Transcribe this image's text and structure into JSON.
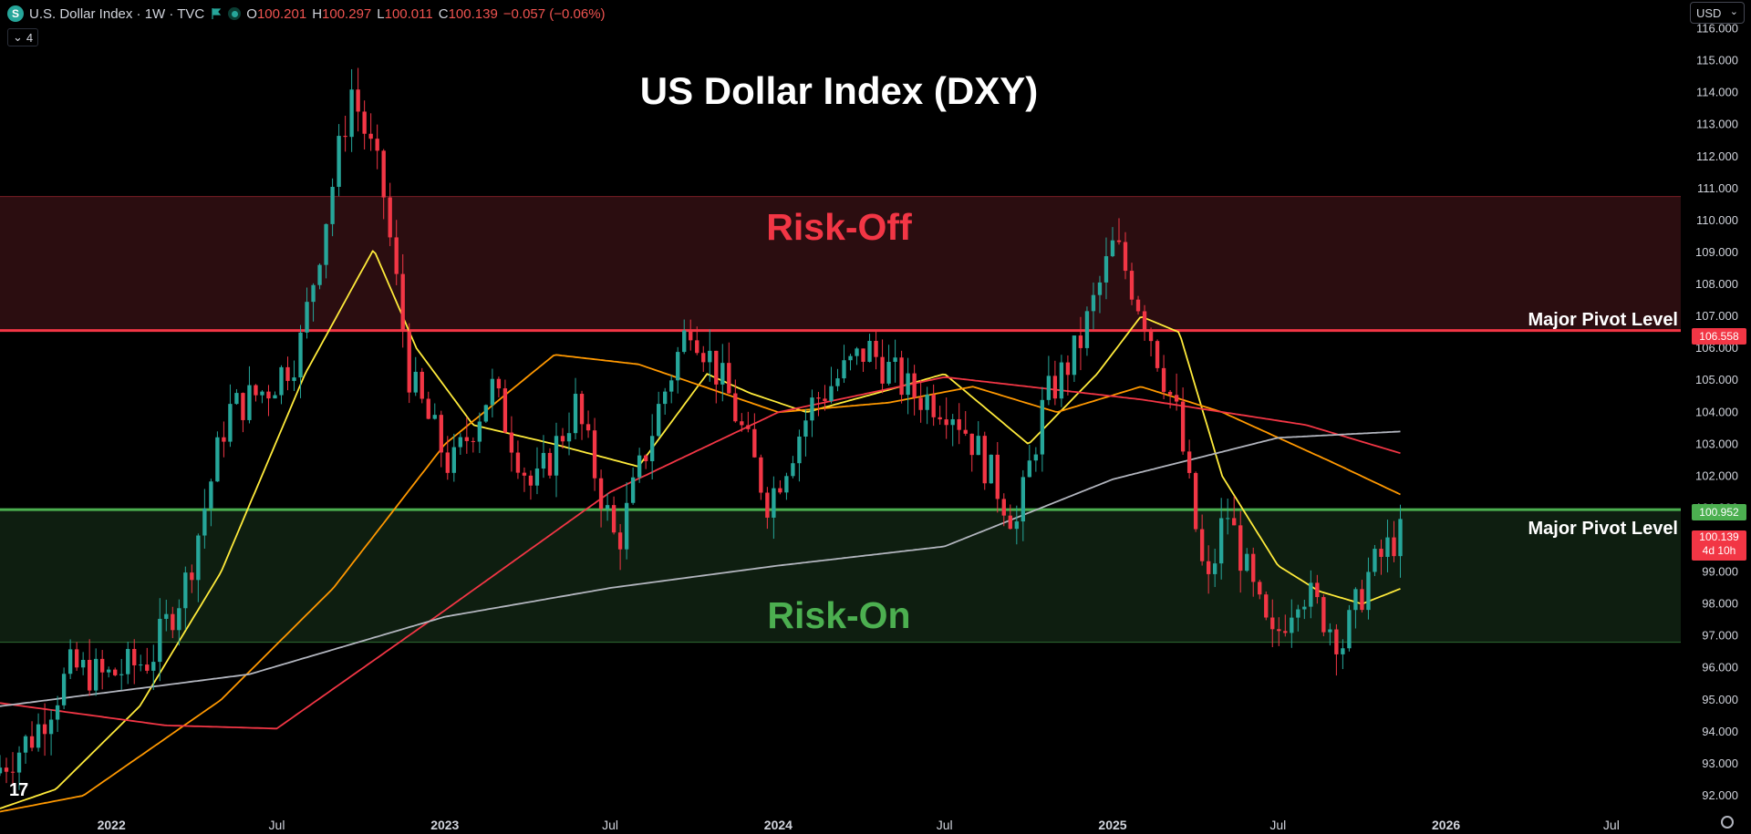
{
  "header": {
    "symbol_icon": "S",
    "instrument": "U.S. Dollar Index · 1W · TVC",
    "open_label": "O",
    "open": "100.201",
    "high_label": "H",
    "high": "100.297",
    "low_label": "L",
    "low": "100.011",
    "close_label": "C",
    "close": "100.139",
    "change": "−0.057 (−0.06%)",
    "indicator_count": "4"
  },
  "currency": "USD",
  "title": "US Dollar Index (DXY)",
  "zones": {
    "risk_off": "Risk-Off",
    "risk_on": "Risk-On",
    "pivot_label": "Major Pivot Level"
  },
  "price_tags": {
    "upper_pivot": "106.558",
    "lower_pivot": "100.952",
    "last_price": "100.139",
    "countdown": "4d 10h"
  },
  "colors": {
    "background": "#000000",
    "bull": "#26a69a",
    "bear": "#f23645",
    "risk_off": "#f23645",
    "risk_on": "#4caf50",
    "ma_fast": "#ffeb3b",
    "ma_mid": "#ff9800",
    "ma_slow": "#f23645",
    "ma_long": "#b2b5be"
  },
  "chart_data": {
    "type": "candlestick",
    "title": "US Dollar Index (DXY)",
    "timeframe": "1W",
    "y_axis": {
      "range": [
        91.4,
        116.9
      ],
      "ticks": [
        "92.000",
        "93.000",
        "94.000",
        "95.000",
        "96.000",
        "97.000",
        "98.000",
        "99.000",
        "100.000",
        "101.000",
        "102.000",
        "103.000",
        "104.000",
        "105.000",
        "106.000",
        "107.000",
        "108.000",
        "109.000",
        "110.000",
        "111.000",
        "112.000",
        "113.000",
        "114.000",
        "115.000",
        "116.000"
      ]
    },
    "x_axis": {
      "range": [
        "2021-09-01",
        "2026-09-15"
      ],
      "ticks": [
        {
          "date": "2022-01-01",
          "label": "2022"
        },
        {
          "date": "2022-07-01",
          "label": "Jul"
        },
        {
          "date": "2023-01-01",
          "label": "2023"
        },
        {
          "date": "2023-07-01",
          "label": "Jul"
        },
        {
          "date": "2024-01-01",
          "label": "2024"
        },
        {
          "date": "2024-07-01",
          "label": "Jul"
        },
        {
          "date": "2025-01-01",
          "label": "2025"
        },
        {
          "date": "2025-07-01",
          "label": "Jul"
        },
        {
          "date": "2026-01-01",
          "label": "2026"
        },
        {
          "date": "2026-07-01",
          "label": "Jul"
        }
      ]
    },
    "zones": [
      {
        "name": "Risk-Off",
        "from": 106.558,
        "to": 110.75
      },
      {
        "name": "Risk-On",
        "from": 96.8,
        "to": 100.952
      }
    ],
    "pivot_levels": [
      106.558,
      100.952
    ],
    "last_price": 100.139,
    "price_path": [
      [
        "2021-09-01",
        92.7
      ],
      [
        "2021-10-15",
        93.9
      ],
      [
        "2021-11-25",
        96.0
      ],
      [
        "2022-01-01",
        95.7
      ],
      [
        "2022-02-20",
        96.3
      ],
      [
        "2022-04-01",
        98.8
      ],
      [
        "2022-05-15",
        104.0
      ],
      [
        "2022-06-30",
        104.8
      ],
      [
        "2022-08-01",
        105.9
      ],
      [
        "2022-09-28",
        114.1
      ],
      [
        "2022-11-01",
        111.0
      ],
      [
        "2022-12-01",
        105.0
      ],
      [
        "2023-01-15",
        102.2
      ],
      [
        "2023-02-28",
        104.8
      ],
      [
        "2023-04-15",
        101.5
      ],
      [
        "2023-05-31",
        104.2
      ],
      [
        "2023-07-15",
        99.8
      ],
      [
        "2023-09-01",
        104.3
      ],
      [
        "2023-10-04",
        106.9
      ],
      [
        "2023-11-15",
        104.5
      ],
      [
        "2023-12-28",
        101.2
      ],
      [
        "2024-02-15",
        104.3
      ],
      [
        "2024-04-15",
        106.0
      ],
      [
        "2024-06-01",
        104.6
      ],
      [
        "2024-07-15",
        104.2
      ],
      [
        "2024-08-10",
        103.0
      ],
      [
        "2024-09-25",
        100.5
      ],
      [
        "2024-10-25",
        104.3
      ],
      [
        "2024-12-01",
        106.0
      ],
      [
        "2025-01-10",
        109.3
      ],
      [
        "2025-02-15",
        106.8
      ],
      [
        "2025-03-20",
        103.8
      ],
      [
        "2025-04-21",
        98.3
      ],
      [
        "2025-05-12",
        101.0
      ],
      [
        "2025-06-10",
        98.4
      ],
      [
        "2025-07-01",
        96.7
      ],
      [
        "2025-08-01",
        98.6
      ],
      [
        "2025-09-17",
        96.8
      ],
      [
        "2025-10-15",
        98.9
      ],
      [
        "2025-11-14",
        100.1
      ]
    ],
    "series": [
      {
        "color_key": "ma_fast",
        "points": [
          [
            "2021-09-01",
            91.6
          ],
          [
            "2021-11-01",
            92.2
          ],
          [
            "2022-02-01",
            94.8
          ],
          [
            "2022-05-01",
            99.0
          ],
          [
            "2022-08-01",
            105.2
          ],
          [
            "2022-10-15",
            109.1
          ],
          [
            "2022-12-01",
            106.0
          ],
          [
            "2023-02-01",
            103.6
          ],
          [
            "2023-05-01",
            103.0
          ],
          [
            "2023-08-01",
            102.3
          ],
          [
            "2023-10-15",
            105.2
          ],
          [
            "2023-12-01",
            104.6
          ],
          [
            "2024-02-01",
            104.0
          ],
          [
            "2024-05-01",
            104.7
          ],
          [
            "2024-07-01",
            105.2
          ],
          [
            "2024-10-01",
            103.0
          ],
          [
            "2024-12-15",
            105.2
          ],
          [
            "2025-02-01",
            107.0
          ],
          [
            "2025-03-15",
            106.5
          ],
          [
            "2025-05-01",
            102.0
          ],
          [
            "2025-07-01",
            99.2
          ],
          [
            "2025-08-15",
            98.4
          ],
          [
            "2025-10-01",
            98.0
          ],
          [
            "2025-11-14",
            98.5
          ]
        ]
      },
      {
        "color_key": "ma_mid",
        "points": [
          [
            "2021-09-01",
            91.5
          ],
          [
            "2021-12-01",
            92.0
          ],
          [
            "2022-05-01",
            95.0
          ],
          [
            "2022-09-01",
            98.5
          ],
          [
            "2023-01-01",
            103.0
          ],
          [
            "2023-05-01",
            105.8
          ],
          [
            "2023-08-01",
            105.5
          ],
          [
            "2024-01-01",
            104.0
          ],
          [
            "2024-05-01",
            104.3
          ],
          [
            "2024-08-01",
            104.8
          ],
          [
            "2024-11-01",
            104.0
          ],
          [
            "2025-02-01",
            104.8
          ],
          [
            "2025-05-01",
            104.0
          ],
          [
            "2025-09-01",
            102.4
          ],
          [
            "2025-11-14",
            101.4
          ]
        ]
      },
      {
        "color_key": "ma_slow",
        "points": [
          [
            "2021-09-01",
            94.9
          ],
          [
            "2022-03-01",
            94.2
          ],
          [
            "2022-07-01",
            94.1
          ],
          [
            "2023-01-01",
            97.8
          ],
          [
            "2023-07-01",
            101.5
          ],
          [
            "2024-01-01",
            104.0
          ],
          [
            "2024-07-01",
            105.1
          ],
          [
            "2025-02-01",
            104.4
          ],
          [
            "2025-08-01",
            103.6
          ],
          [
            "2025-11-14",
            102.7
          ]
        ]
      },
      {
        "color_key": "ma_long",
        "points": [
          [
            "2021-09-01",
            94.8
          ],
          [
            "2022-06-01",
            95.8
          ],
          [
            "2023-01-01",
            97.6
          ],
          [
            "2023-07-01",
            98.5
          ],
          [
            "2024-01-01",
            99.2
          ],
          [
            "2024-07-01",
            99.8
          ],
          [
            "2025-01-01",
            101.9
          ],
          [
            "2025-07-01",
            103.2
          ],
          [
            "2025-11-14",
            103.4
          ]
        ]
      }
    ]
  }
}
